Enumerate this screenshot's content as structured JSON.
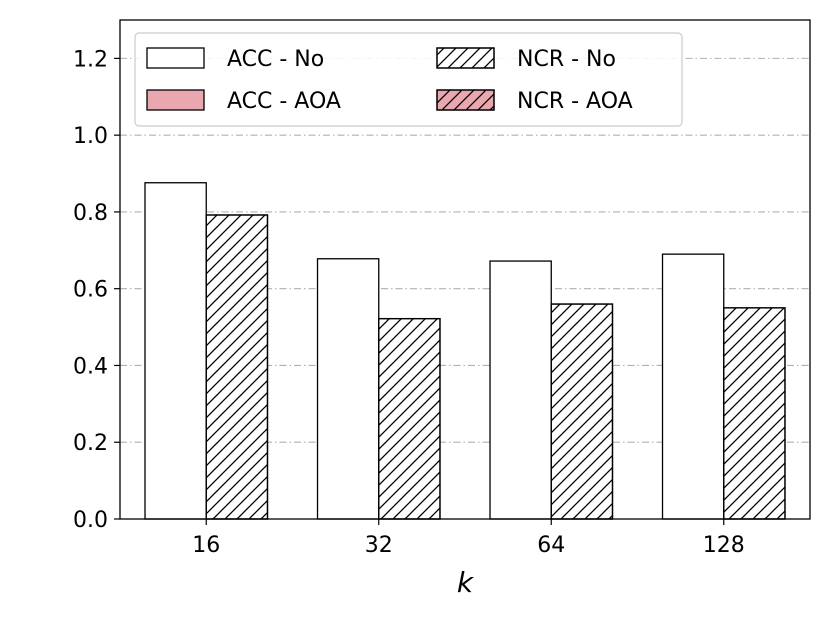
{
  "chart_data": {
    "type": "bar",
    "xlabel": "k",
    "ylabel": "",
    "title": "",
    "categories": [
      "16",
      "32",
      "64",
      "128"
    ],
    "ylim": [
      0,
      1.3
    ],
    "yticks": [
      "0.0",
      "0.2",
      "0.4",
      "0.6",
      "0.8",
      "1.0",
      "1.2"
    ],
    "grid": true,
    "legend_position": "top-left",
    "legend": [
      "ACC - No",
      "ACC - AOA",
      "NCR - No",
      "NCR - AOA"
    ],
    "series": [
      {
        "name": "ACC - No",
        "values": [
          0.876,
          0.678,
          0.672,
          0.69
        ],
        "fill": "#ffffff",
        "hatch": false
      },
      {
        "name": "NCR - No",
        "values": [
          0.792,
          0.522,
          0.56,
          0.55
        ],
        "fill": "#ffffff",
        "hatch": true
      }
    ],
    "legend_styles": [
      {
        "fill": "#ffffff",
        "hatch": false
      },
      {
        "fill": "#eaa7b0",
        "hatch": false
      },
      {
        "fill": "#ffffff",
        "hatch": true
      },
      {
        "fill": "#eaa7b0",
        "hatch": true
      }
    ]
  }
}
